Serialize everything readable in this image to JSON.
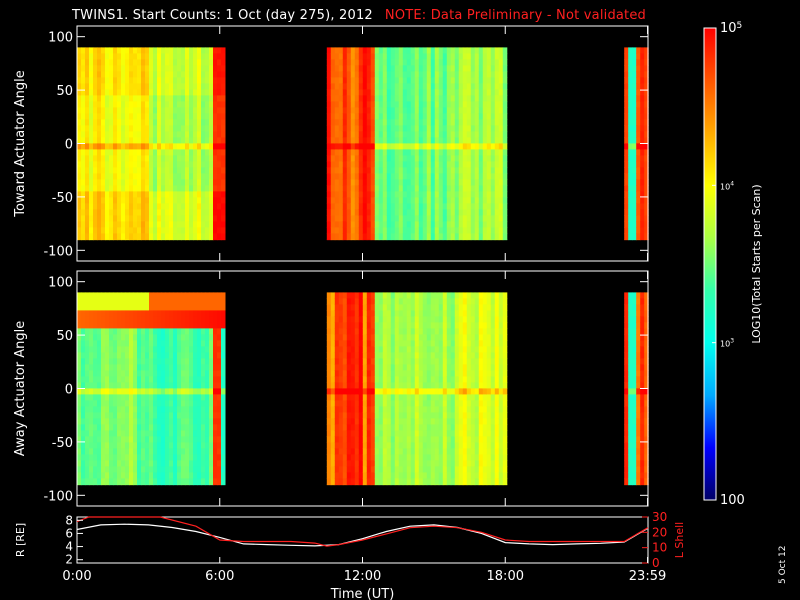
{
  "header": {
    "title": "TWINS1. Start Counts:  1 Oct (day 275), 2012",
    "note": "NOTE: Data Preliminary - Not validated",
    "note_color": "#ff2020"
  },
  "stamp": "5 Oct 12",
  "colors": {
    "background": "#000000",
    "axes": "#ffffff",
    "trace_r": "#ffffff",
    "trace_lshell": "#ff2020"
  },
  "chart_data": [
    {
      "type": "heatmap",
      "ylabel": "Toward Actuator Angle",
      "xlim": [
        0,
        24
      ],
      "ylim": [
        -110,
        110
      ],
      "y_ticks": [
        "100",
        "50",
        "0",
        "-50",
        "-100"
      ],
      "y_tick_values": [
        100,
        50,
        0,
        -50,
        -100
      ],
      "data_range_y": [
        -90,
        90
      ],
      "coverage_intervals_hours": [
        [
          0,
          6.1
        ],
        [
          10.5,
          18
        ],
        [
          23,
          24
        ]
      ],
      "x_ticks": [
        "0:00",
        "6:00",
        "12:00",
        "18:00",
        "23:59"
      ],
      "x_tick_values": [
        0,
        6,
        12,
        18,
        23.98
      ],
      "dominant_log10_level": {
        "0-6h": 3.8,
        "10.5-12.5h": 4.6,
        "12.5-18h": 3.5,
        "23-24h": 4.7
      }
    },
    {
      "type": "heatmap",
      "ylabel": "Away Actuator Angle",
      "xlim": [
        0,
        24
      ],
      "ylim": [
        -110,
        110
      ],
      "y_ticks": [
        "100",
        "50",
        "0",
        "-50",
        "-100"
      ],
      "y_tick_values": [
        100,
        50,
        0,
        -50,
        -100
      ],
      "data_range_y": [
        -90,
        90
      ],
      "coverage_intervals_hours": [
        [
          0,
          6.1
        ],
        [
          10.5,
          18
        ],
        [
          23,
          24
        ]
      ],
      "x_ticks": [
        "0:00",
        "6:00",
        "12:00",
        "18:00",
        "23:59"
      ],
      "x_tick_values": [
        0,
        6,
        12,
        18,
        23.98
      ],
      "dominant_log10_level": {
        "0-6h": 3.4,
        "10.5-12.5h": 4.6,
        "12.5-18h": 3.7,
        "23-24h": 4.7
      }
    },
    {
      "type": "colorbar",
      "label": "LOG10(Total Starts per Scan)",
      "range": [
        100,
        100000
      ],
      "tick_values": [
        100,
        1000,
        10000,
        100000
      ],
      "tick_labels": [
        "100",
        "10",
        "10",
        "10"
      ],
      "tick_exponents": [
        "",
        "3",
        "4",
        "5"
      ],
      "stops": [
        "#000066",
        "#0000ff",
        "#00aaff",
        "#00ffee",
        "#33ffaa",
        "#aaff44",
        "#ffff00",
        "#ffaa00",
        "#ff5500",
        "#ff0000"
      ]
    },
    {
      "type": "line",
      "xlabel": "Time (UT)",
      "x_ticks": [
        "0:00",
        "6:00",
        "12:00",
        "18:00",
        "23:59"
      ],
      "x_tick_values": [
        0,
        6,
        12,
        18,
        23.98
      ],
      "left_axis": {
        "label": "R [RE]",
        "ticks": [
          "8",
          "6",
          "4",
          "2"
        ],
        "tick_values": [
          8,
          6,
          4,
          2
        ],
        "ylim": [
          1.5,
          8.5
        ]
      },
      "right_axis": {
        "label": "L Shell",
        "ticks": [
          "30",
          "20",
          "10",
          "0"
        ],
        "tick_values": [
          30,
          20,
          10,
          0
        ],
        "ylim": [
          0,
          30
        ]
      },
      "series": [
        {
          "axis": "left",
          "color": "#ffffff",
          "x": [
            0,
            1,
            2,
            3,
            4,
            5,
            6,
            7,
            8,
            9,
            10,
            11,
            12,
            13,
            14,
            15,
            16,
            17,
            18,
            19,
            20,
            21,
            22,
            23,
            24
          ],
          "y": [
            6.6,
            7.3,
            7.4,
            7.3,
            6.9,
            6.3,
            5.4,
            4.4,
            4.3,
            4.2,
            4.1,
            4.3,
            5.2,
            6.3,
            7.1,
            7.3,
            6.9,
            6.0,
            4.6,
            4.4,
            4.3,
            4.4,
            4.5,
            4.7,
            6.8
          ]
        },
        {
          "axis": "right",
          "color": "#ff2020",
          "x": [
            0,
            0.5,
            3.5,
            5,
            6,
            7,
            8,
            9,
            10,
            10.5,
            11,
            12,
            13,
            14,
            15,
            16,
            17,
            18,
            19,
            20,
            21,
            22,
            23,
            24
          ],
          "y": [
            27,
            30,
            30,
            24,
            15,
            14,
            14,
            14,
            13,
            11,
            12,
            15,
            19,
            23,
            24,
            23,
            20,
            15,
            14,
            14,
            14,
            14,
            14,
            23
          ]
        }
      ]
    }
  ]
}
